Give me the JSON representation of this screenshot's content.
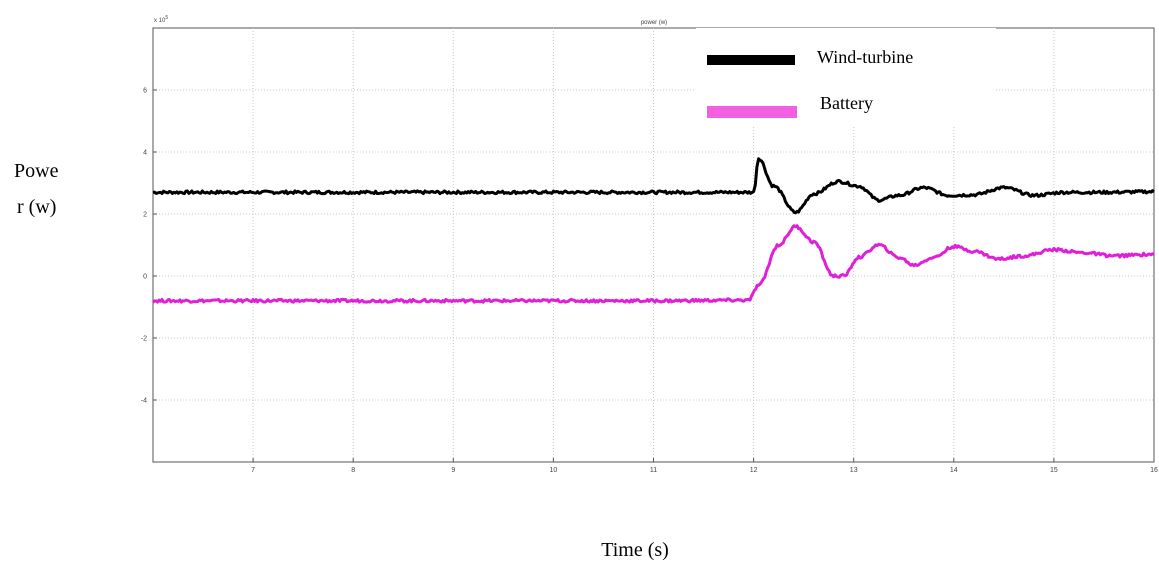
{
  "chart_data": {
    "type": "line",
    "title": "power (w)",
    "exponent_label": "x 10",
    "exponent_power": "5",
    "ylabel_line1": "Powe",
    "ylabel_line2": "r (w)",
    "xlabel": "Time (s)",
    "xlim": [
      6,
      16
    ],
    "ylim": [
      -6,
      8
    ],
    "xticks": [
      7,
      8,
      9,
      10,
      11,
      12,
      13,
      14,
      15,
      16
    ],
    "yticks": [
      -4,
      -2,
      0,
      2,
      4,
      6
    ],
    "grid": true,
    "legend_position": "top-right",
    "series": [
      {
        "name": "Wind-turbine",
        "color": "#000000",
        "x": [
          6,
          7,
          8,
          9,
          10,
          11,
          12,
          12.05,
          12.2,
          12.42,
          12.6,
          12.85,
          13.05,
          13.25,
          13.45,
          13.7,
          13.95,
          14.2,
          14.5,
          14.8,
          15.1,
          15.5,
          16
        ],
        "y": [
          2.7,
          2.7,
          2.7,
          2.7,
          2.7,
          2.7,
          2.7,
          3.8,
          2.9,
          2.05,
          2.65,
          3.05,
          2.9,
          2.45,
          2.6,
          2.85,
          2.6,
          2.62,
          2.85,
          2.6,
          2.7,
          2.7,
          2.72
        ]
      },
      {
        "name": "Battery",
        "color": "#e020d8",
        "x": [
          6,
          7,
          8,
          9,
          10,
          11,
          11.95,
          12.05,
          12.25,
          12.42,
          12.6,
          12.8,
          12.9,
          13.05,
          13.25,
          13.45,
          13.6,
          13.8,
          14.0,
          14.2,
          14.45,
          14.7,
          15.0,
          15.3,
          15.6,
          16
        ],
        "y": [
          -0.8,
          -0.8,
          -0.8,
          -0.8,
          -0.8,
          -0.8,
          -0.78,
          -0.3,
          1.0,
          1.6,
          1.1,
          0.0,
          0.0,
          0.6,
          1.0,
          0.6,
          0.35,
          0.6,
          0.95,
          0.8,
          0.55,
          0.65,
          0.85,
          0.75,
          0.65,
          0.7
        ]
      }
    ]
  }
}
